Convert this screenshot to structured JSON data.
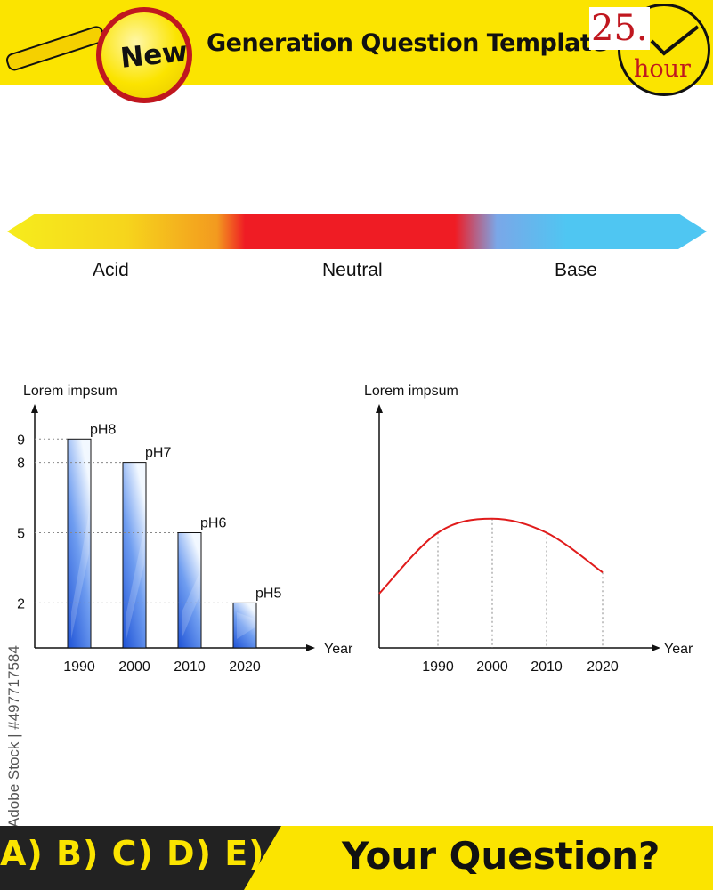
{
  "header": {
    "title": "Generation Question Template",
    "badge": "New",
    "clock_number": "25.",
    "clock_unit": "hour",
    "accent_color": "#fbe400",
    "brand_red": "#c0171f"
  },
  "ph_scale": {
    "labels": [
      "Acid",
      "Neutral",
      "Base"
    ],
    "colors": [
      "#f6ec1c",
      "#f39a1f",
      "#ef1c24",
      "#4fc6f2"
    ]
  },
  "chart_data": [
    {
      "type": "bar",
      "ylabel": "Lorem impsum",
      "xlabel": "Year",
      "categories": [
        "1990",
        "2000",
        "2010",
        "2020"
      ],
      "values": [
        9,
        8,
        5,
        2
      ],
      "data_labels": [
        "pH8",
        "pH7",
        "pH6",
        "pH5"
      ],
      "y_ticks": [
        2,
        5,
        8,
        9
      ],
      "ylim": [
        0,
        11
      ],
      "grid": "dotted guide lines at bar tops",
      "bar_color": "#1e52d6"
    },
    {
      "type": "line",
      "ylabel": "Lorem impsum",
      "xlabel": "Year",
      "categories": [
        "1990",
        "2000",
        "2010",
        "2020"
      ],
      "x_start": 1980,
      "curve": "smooth arc rising from the y-axis, peaking near 2000, falling toward 2020",
      "values": [
        5.0,
        5.6,
        5.0,
        3.3
      ],
      "start_value": 2.4,
      "ylim": [
        0,
        11
      ],
      "y_ticks_visible": false,
      "grid": "dotted vertical drop lines at each year",
      "line_color": "#e01b1b"
    }
  ],
  "stock_id": "Adobe Stock | #497717584",
  "footer": {
    "answers": "A) B) C) D) E)",
    "question": "Your Question?"
  }
}
